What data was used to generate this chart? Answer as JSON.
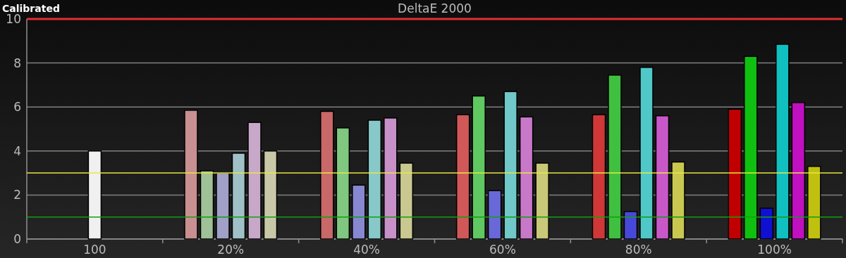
{
  "chart_data": {
    "type": "bar",
    "title": "DeltaE 2000",
    "subtitle": "Calibrated",
    "categories": [
      "100",
      "20%",
      "40%",
      "60%",
      "80%",
      "100%"
    ],
    "series": [
      {
        "colors": [
          "#f0f0f0",
          null,
          null,
          null,
          null,
          null
        ],
        "values": [
          4.0,
          null,
          null,
          null,
          null,
          null
        ]
      },
      {
        "colors": [
          null,
          "#c89090",
          "#c86868",
          "#d05858",
          "#d03838",
          "#c00000"
        ],
        "values": [
          null,
          5.85,
          5.8,
          5.65,
          5.65,
          5.9
        ]
      },
      {
        "colors": [
          null,
          "#a0c098",
          "#80c880",
          "#60c860",
          "#40c040",
          "#10c010"
        ],
        "values": [
          null,
          3.1,
          5.05,
          6.5,
          7.45,
          8.3
        ]
      },
      {
        "colors": [
          null,
          "#a0a0c8",
          "#8888d0",
          "#6868d8",
          "#4848d8",
          "#1010d0"
        ],
        "values": [
          null,
          3.0,
          2.45,
          2.2,
          1.25,
          1.4
        ]
      },
      {
        "colors": [
          null,
          "#a0c0c8",
          "#88c8c8",
          "#70c8c8",
          "#50c8c8",
          "#10c0c0"
        ],
        "values": [
          null,
          3.9,
          5.4,
          6.7,
          7.8,
          8.85
        ]
      },
      {
        "colors": [
          null,
          "#c8a8c8",
          "#c890c8",
          "#c878c8",
          "#c858c8",
          "#c010c0"
        ],
        "values": [
          null,
          5.3,
          5.5,
          5.55,
          5.6,
          6.2
        ]
      },
      {
        "colors": [
          null,
          "#c8c8a8",
          "#c8c890",
          "#c8c878",
          "#c8c850",
          "#c0c010"
        ],
        "values": [
          null,
          4.0,
          3.45,
          3.45,
          3.5,
          3.3
        ]
      }
    ],
    "ylim": [
      0,
      10
    ],
    "yticks": [
      0,
      2,
      4,
      6,
      8,
      10
    ],
    "grid": "y",
    "ref_lines": [
      {
        "axis": "y",
        "value": 3,
        "color": "#e8e840"
      },
      {
        "axis": "y",
        "value": 1,
        "color": "#10a010"
      },
      {
        "axis": "y",
        "value": 10,
        "color": "#e03030"
      }
    ]
  }
}
